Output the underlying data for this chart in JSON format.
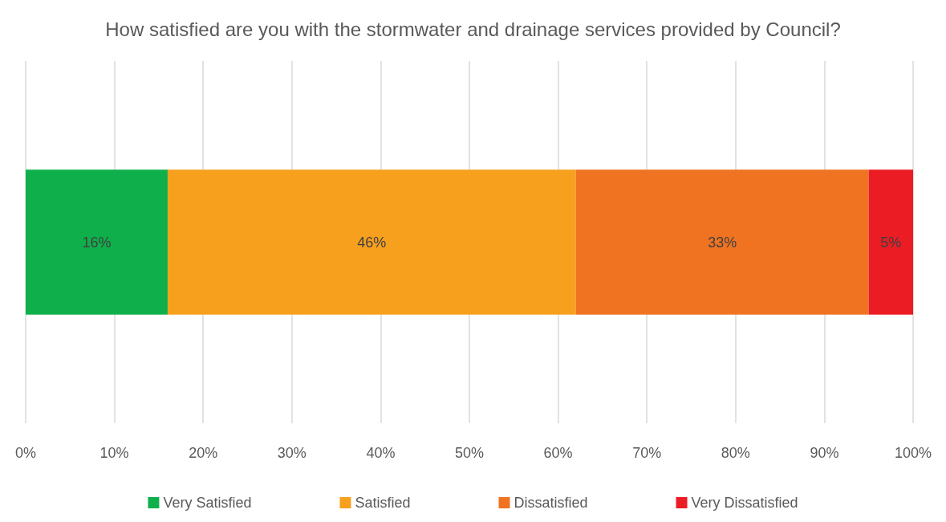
{
  "chart_data": {
    "type": "bar",
    "orientation": "horizontal",
    "stacked": true,
    "title": "How satisfied are you with the stormwater and drainage services provided by Council?",
    "categories": [
      null
    ],
    "series": [
      {
        "name": "Very Satisfied",
        "color": "#0fb04b",
        "values": [
          16
        ],
        "value_labels": [
          "16%"
        ]
      },
      {
        "name": "Satisfied",
        "color": "#f7a01e",
        "values": [
          46
        ],
        "value_labels": [
          "46%"
        ]
      },
      {
        "name": "Dissatisfied",
        "color": "#f07322",
        "values": [
          33
        ],
        "value_labels": [
          "33%"
        ]
      },
      {
        "name": "Very Dissatisfied",
        "color": "#ec1c24",
        "values": [
          5
        ],
        "value_labels": [
          "5%"
        ]
      }
    ],
    "xlim": [
      0,
      100
    ],
    "xticks": [
      {
        "value": 0,
        "label": "0%"
      },
      {
        "value": 10,
        "label": "10%"
      },
      {
        "value": 20,
        "label": "20%"
      },
      {
        "value": 30,
        "label": "30%"
      },
      {
        "value": 40,
        "label": "40%"
      },
      {
        "value": 50,
        "label": "50%"
      },
      {
        "value": 60,
        "label": "60%"
      },
      {
        "value": 70,
        "label": "70%"
      },
      {
        "value": 80,
        "label": "80%"
      },
      {
        "value": 90,
        "label": "90%"
      },
      {
        "value": 100,
        "label": "100%"
      }
    ],
    "grid": "x",
    "legend": "bottom"
  }
}
